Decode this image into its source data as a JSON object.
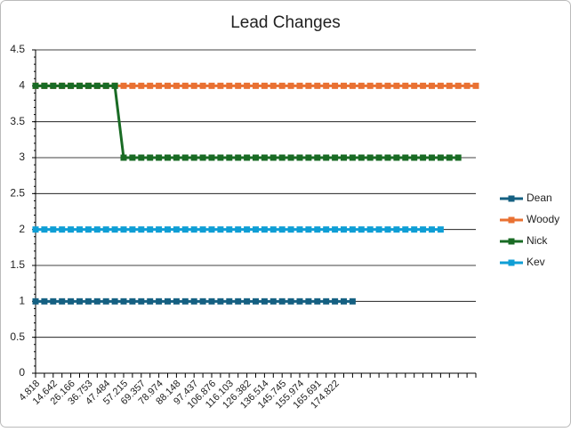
{
  "chart_data": {
    "type": "line",
    "title": "Lead Changes",
    "categories": [
      "4.818",
      null,
      "14.642",
      null,
      "26.166",
      null,
      "36.753",
      null,
      "47.484",
      null,
      "57.215",
      null,
      "69.357",
      null,
      "78.974",
      null,
      "88.148",
      null,
      "97.437",
      null,
      "106.876",
      null,
      "116.103",
      null,
      "126.382",
      null,
      "136.514",
      null,
      "145.745",
      null,
      "155.974",
      null,
      "165.691",
      null,
      "174.822",
      null,
      null,
      null,
      null,
      null,
      null,
      null,
      null,
      null,
      null,
      null,
      null,
      null,
      null,
      null,
      null
    ],
    "series": [
      {
        "name": "Dean",
        "color": "#156082",
        "values": [
          1,
          1,
          1,
          1,
          1,
          1,
          1,
          1,
          1,
          1,
          1,
          1,
          1,
          1,
          1,
          1,
          1,
          1,
          1,
          1,
          1,
          1,
          1,
          1,
          1,
          1,
          1,
          1,
          1,
          1,
          1,
          1,
          1,
          1,
          1,
          1,
          1,
          null,
          null,
          null,
          null,
          null,
          null,
          null,
          null,
          null,
          null,
          null,
          null,
          null,
          null
        ]
      },
      {
        "name": "Woody",
        "color": "#e97132",
        "values": [
          4,
          4,
          4,
          4,
          4,
          4,
          4,
          4,
          4,
          4,
          4,
          4,
          4,
          4,
          4,
          4,
          4,
          4,
          4,
          4,
          4,
          4,
          4,
          4,
          4,
          4,
          4,
          4,
          4,
          4,
          4,
          4,
          4,
          4,
          4,
          4,
          4,
          4,
          4,
          4,
          4,
          4,
          4,
          4,
          4,
          4,
          4,
          4,
          4,
          4,
          4
        ]
      },
      {
        "name": "Nick",
        "color": "#196b24",
        "values": [
          4,
          4,
          4,
          4,
          4,
          4,
          4,
          4,
          4,
          4,
          3,
          3,
          3,
          3,
          3,
          3,
          3,
          3,
          3,
          3,
          3,
          3,
          3,
          3,
          3,
          3,
          3,
          3,
          3,
          3,
          3,
          3,
          3,
          3,
          3,
          3,
          3,
          3,
          3,
          3,
          3,
          3,
          3,
          3,
          3,
          3,
          3,
          3,
          3,
          null,
          null
        ]
      },
      {
        "name": "Kev",
        "color": "#0f9ed5",
        "values": [
          2,
          2,
          2,
          2,
          2,
          2,
          2,
          2,
          2,
          2,
          2,
          2,
          2,
          2,
          2,
          2,
          2,
          2,
          2,
          2,
          2,
          2,
          2,
          2,
          2,
          2,
          2,
          2,
          2,
          2,
          2,
          2,
          2,
          2,
          2,
          2,
          2,
          2,
          2,
          2,
          2,
          2,
          2,
          2,
          2,
          2,
          2,
          null,
          null,
          null,
          null
        ]
      }
    ],
    "ylim": [
      0,
      4.5
    ],
    "yticks": [
      0,
      0.5,
      1,
      1.5,
      2,
      2.5,
      3,
      3.5,
      4,
      4.5
    ],
    "grid": true,
    "legend": "right"
  }
}
